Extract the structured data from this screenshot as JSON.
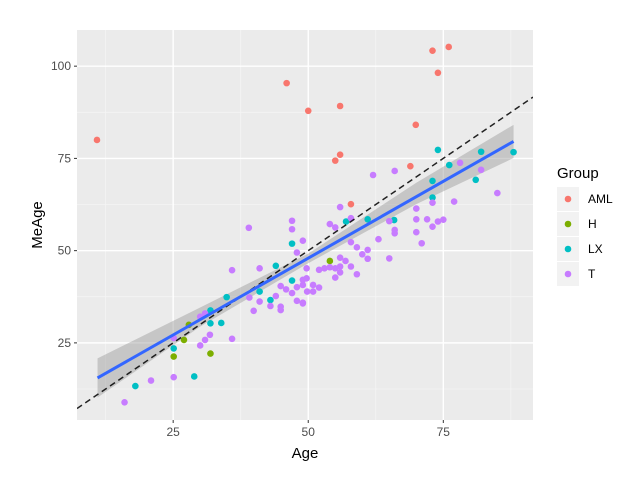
{
  "chart_data": {
    "type": "scatter",
    "title": "",
    "xlabel": "Age",
    "ylabel": "MeAge",
    "xlim": [
      7.2,
      91.6
    ],
    "ylim": [
      4.1,
      109.8
    ],
    "xticks": [
      25,
      50,
      75
    ],
    "yticks": [
      25,
      50,
      75,
      100
    ],
    "grid": true,
    "legend": {
      "title": "Group",
      "placement": "right"
    },
    "series": [
      {
        "name": "AML",
        "color": "#F8766D",
        "points": [
          [
            10.9,
            80.0
          ],
          [
            46.0,
            95.4
          ],
          [
            50.0,
            87.9
          ],
          [
            55.9,
            89.2
          ],
          [
            55.9,
            76.0
          ],
          [
            55.0,
            74.4
          ],
          [
            68.9,
            72.9
          ],
          [
            69.9,
            84.1
          ],
          [
            73.0,
            104.2
          ],
          [
            74.0,
            98.2
          ],
          [
            76.0,
            105.2
          ],
          [
            57.9,
            62.6
          ]
        ]
      },
      {
        "name": "H",
        "color": "#7CAE00",
        "points": [
          [
            27.9,
            29.9
          ],
          [
            27.0,
            25.8
          ],
          [
            25.1,
            21.3
          ],
          [
            31.9,
            22.1
          ],
          [
            54.0,
            47.2
          ]
        ]
      },
      {
        "name": "LX",
        "color": "#00BFC4",
        "points": [
          [
            47.0,
            51.9
          ],
          [
            44.0,
            45.9
          ],
          [
            47.0,
            41.9
          ],
          [
            41.0,
            38.9
          ],
          [
            34.9,
            37.4
          ],
          [
            43.0,
            36.6
          ],
          [
            31.9,
            33.8
          ],
          [
            31.9,
            30.3
          ],
          [
            33.9,
            30.4
          ],
          [
            25.1,
            23.5
          ],
          [
            18.0,
            13.3
          ],
          [
            28.9,
            15.9
          ],
          [
            57.0,
            57.9
          ],
          [
            61.0,
            58.5
          ],
          [
            65.9,
            58.3
          ],
          [
            73.0,
            68.9
          ],
          [
            73.0,
            64.4
          ],
          [
            76.1,
            73.2
          ],
          [
            81.0,
            69.2
          ],
          [
            88.0,
            76.7
          ],
          [
            74.0,
            77.3
          ],
          [
            82.0,
            76.8
          ]
        ]
      },
      {
        "name": "T",
        "color": "#C77CFF",
        "points": [
          [
            39.0,
            56.2
          ],
          [
            47.0,
            58.1
          ],
          [
            47.0,
            55.8
          ],
          [
            49.0,
            52.7
          ],
          [
            47.9,
            49.5
          ],
          [
            35.9,
            44.7
          ],
          [
            41.0,
            45.2
          ],
          [
            44.9,
            40.4
          ],
          [
            45.9,
            39.5
          ],
          [
            47.0,
            38.5
          ],
          [
            47.9,
            40.1
          ],
          [
            49.0,
            42.1
          ],
          [
            49.8,
            38.9
          ],
          [
            44.0,
            37.7
          ],
          [
            47.9,
            36.4
          ],
          [
            49.0,
            35.9
          ],
          [
            39.1,
            37.3
          ],
          [
            41.0,
            36.2
          ],
          [
            43.0,
            35.0
          ],
          [
            44.9,
            34.8
          ],
          [
            44.9,
            33.9
          ],
          [
            39.9,
            33.7
          ],
          [
            30.9,
            33.0
          ],
          [
            30.0,
            32.1
          ],
          [
            31.8,
            27.2
          ],
          [
            30.9,
            25.8
          ],
          [
            30.0,
            24.3
          ],
          [
            35.9,
            26.1
          ],
          [
            25.1,
            26.3
          ],
          [
            20.9,
            14.8
          ],
          [
            25.1,
            15.7
          ],
          [
            16.0,
            8.9
          ],
          [
            62.0,
            70.5
          ],
          [
            66.0,
            71.6
          ],
          [
            78.1,
            73.8
          ],
          [
            82.0,
            71.9
          ],
          [
            85.0,
            65.6
          ],
          [
            77.0,
            63.3
          ],
          [
            73.0,
            63.0
          ],
          [
            70.0,
            61.4
          ],
          [
            55.9,
            61.8
          ],
          [
            57.9,
            58.8
          ],
          [
            54.0,
            57.2
          ],
          [
            55.0,
            56.3
          ],
          [
            70.0,
            58.5
          ],
          [
            72.0,
            58.5
          ],
          [
            74.0,
            57.9
          ],
          [
            75.0,
            58.4
          ],
          [
            73.0,
            56.5
          ],
          [
            65.0,
            58.0
          ],
          [
            66.0,
            55.6
          ],
          [
            66.0,
            54.7
          ],
          [
            70.0,
            55.0
          ],
          [
            71.0,
            52.0
          ],
          [
            63.0,
            53.1
          ],
          [
            57.9,
            52.3
          ],
          [
            59.0,
            50.9
          ],
          [
            61.0,
            50.2
          ],
          [
            60.0,
            49.0
          ],
          [
            61.0,
            47.8
          ],
          [
            65.0,
            47.9
          ],
          [
            55.9,
            48.1
          ],
          [
            56.9,
            47.2
          ],
          [
            57.9,
            45.7
          ],
          [
            59.0,
            43.6
          ],
          [
            55.9,
            45.7
          ],
          [
            55.0,
            45.2
          ],
          [
            54.0,
            45.5
          ],
          [
            53.0,
            45.2
          ],
          [
            52.0,
            44.8
          ],
          [
            55.0,
            42.7
          ],
          [
            55.9,
            44.1
          ],
          [
            49.7,
            45.2
          ],
          [
            49.7,
            42.5
          ],
          [
            49.0,
            40.7
          ],
          [
            50.9,
            40.7
          ],
          [
            52.0,
            40.0
          ],
          [
            50.9,
            38.9
          ],
          [
            49.0,
            35.7
          ]
        ]
      }
    ],
    "fit_line": {
      "color": "#3366FF",
      "x": [
        11,
        88
      ],
      "y": [
        15.5,
        79.6
      ]
    },
    "fit_ribbon": {
      "x": [
        11,
        30,
        50,
        70,
        88
      ],
      "lower": [
        10.2,
        29.4,
        46.6,
        62.6,
        75.1
      ],
      "upper": [
        20.8,
        34.6,
        49.2,
        68.4,
        84.1
      ]
    },
    "reference_line": {
      "slope": 1,
      "intercept": 0,
      "style": "dashed",
      "color": "#000000"
    }
  }
}
